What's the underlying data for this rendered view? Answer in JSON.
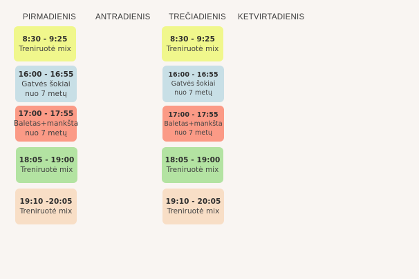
{
  "days": {
    "mon": "PIRMADIENIS",
    "tue": "ANTRADIENIS",
    "wed": "TREČIADIENIS",
    "thu": "KETVIRTADIENIS"
  },
  "mon": [
    {
      "time": "8:30 - 9:25",
      "name": "Treniruotė mix"
    },
    {
      "time": "16:00 - 16:55",
      "name": "Gatvės šokiai\nnuo 7 metų"
    },
    {
      "time": "17:00 - 17:55",
      "name": "Baletas+mankšta\nnuo 7 metų"
    },
    {
      "time": "18:05 - 19:00",
      "name": "Treniruotė mix"
    },
    {
      "time": "19:10 -20:05",
      "name": "Treniruotė mix"
    }
  ],
  "wed": [
    {
      "time": "8:30 - 9:25",
      "name": "Treniruotė mix"
    },
    {
      "time": "16:00 - 16:55",
      "name": "Gatvės šokiai\nnuo 7 metų"
    },
    {
      "time": "17:00 - 17:55",
      "name": "Baletas+mankšta\nnuo 7 metų"
    },
    {
      "time": "18:05 - 19:00",
      "name": "Treniruotė mix"
    },
    {
      "time": "19:10 - 20:05",
      "name": "Treniruotė mix"
    }
  ],
  "colors": {
    "yellow": "#f0f78c",
    "blue": "#c8dfe6",
    "salmon": "#fb9a86",
    "green": "#b3e3a2",
    "peach": "#f8dec6",
    "background": "#f9f5f2"
  }
}
